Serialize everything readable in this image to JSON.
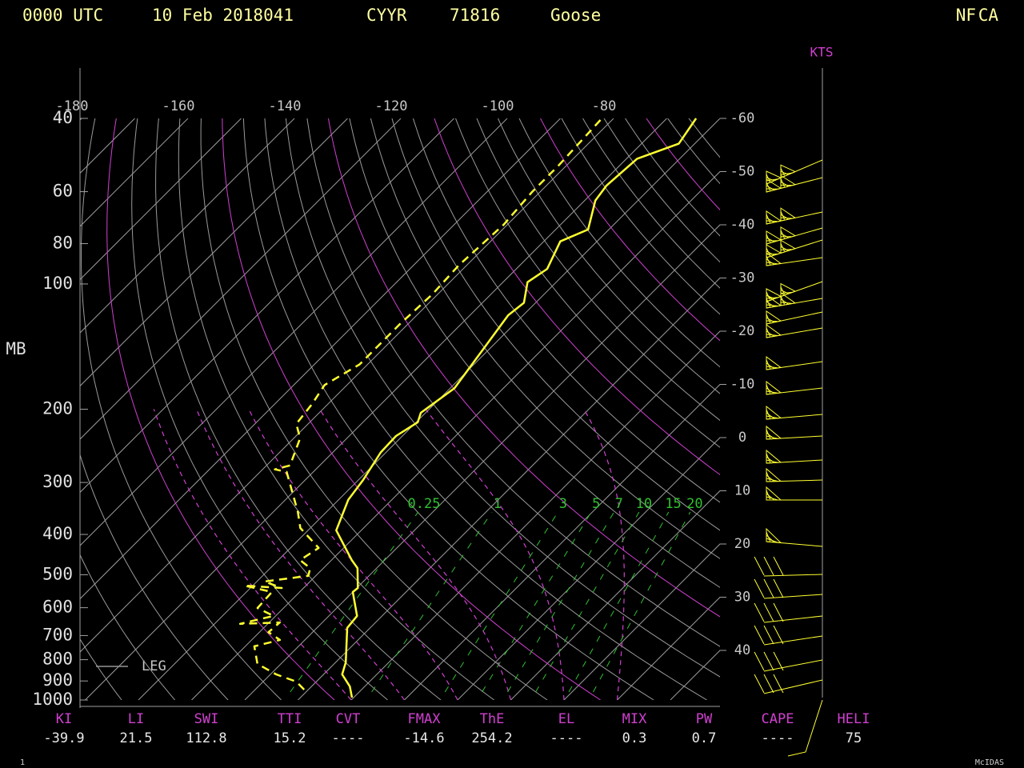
{
  "chart_data": {
    "type": "skewt",
    "header": [
      "0000 UTC",
      "10 Feb 2018041",
      "CYYR",
      "71816",
      "Goose"
    ],
    "header_right": [
      "NF",
      "CA"
    ],
    "ylabel": "MB",
    "log_scale": true,
    "ylim": [
      1000,
      40
    ],
    "yticks": [
      40,
      60,
      80,
      100,
      200,
      300,
      400,
      500,
      600,
      700,
      800,
      900,
      1000
    ],
    "xlim": [
      -180,
      -60
    ],
    "xticks": [
      -180,
      -160,
      -140,
      -120,
      -100,
      -80
    ],
    "x2ticks": [
      -60,
      -50,
      -40,
      -30,
      -20,
      -10,
      0,
      10,
      20,
      30,
      40
    ],
    "series": [
      {
        "color": "#ffff30",
        "style": "solid",
        "pressure": [
          987,
          928,
          868,
          812,
          671,
          628,
          550,
          538,
          482,
          461,
          391,
          330,
          296,
          254,
          232,
          215,
          204,
          178,
          119,
          111,
          99,
          92,
          79,
          74,
          63,
          58,
          50,
          46,
          40
        ],
        "values": [
          -20.3,
          -22.8,
          -26.5,
          -28.1,
          -34.3,
          -34.7,
          -40.0,
          -39.8,
          -43.6,
          -46.2,
          -54.7,
          -58.2,
          -59.1,
          -61.0,
          -61.2,
          -59.7,
          -60.9,
          -59.2,
          -62.8,
          -62.2,
          -65.4,
          -64.2,
          -66.9,
          -63.9,
          -68.0,
          -68.7,
          -68.0,
          -63.0,
          -64.5
        ]
      },
      {
        "color": "#ffff30",
        "style": "dashed",
        "pressure": [
          944,
          903,
          868,
          819,
          743,
          717,
          687,
          651,
          656,
          628,
          601,
          550,
          531,
          538,
          519,
          503,
          482,
          461,
          431,
          386,
          353,
          283,
          279,
          273,
          235,
          217,
          194,
          175,
          156,
          125,
          106,
          90,
          72,
          60,
          52,
          40
        ],
        "values": [
          -30.8,
          -33.8,
          -38.9,
          -44.4,
          -48.3,
          -44.7,
          -48.3,
          -48.0,
          -55.2,
          -50.4,
          -54.9,
          -55.2,
          -61.6,
          -54.1,
          -58.6,
          -51.4,
          -52.5,
          -55.9,
          -54.7,
          -61.9,
          -65.4,
          -75.0,
          -77.7,
          -75.6,
          -78.8,
          -82.2,
          -83.0,
          -84.2,
          -81.5,
          -81.5,
          -81.0,
          -81.5,
          -80.7,
          -81.5,
          -81.5,
          -82.2
        ]
      }
    ],
    "mixing_ratios": {
      "color": "#30c030",
      "values": [
        0.25,
        1,
        3,
        5,
        7,
        10,
        15,
        20
      ]
    },
    "legend_label": "LEG",
    "wind_unit": "KTS",
    "indices": [
      {
        "label": "KI",
        "value": -39.9
      },
      {
        "label": "LI",
        "value": 21.5
      },
      {
        "label": "SWI",
        "value": 112.8
      },
      {
        "label": "TTI",
        "value": 15.2
      },
      {
        "label": "CVT",
        "value": "----"
      },
      {
        "label": "FMAX",
        "value": -14.6
      },
      {
        "label": "ThE",
        "value": 254.2
      },
      {
        "label": "EL",
        "value": "----"
      },
      {
        "label": "MIX",
        "value": 0.3
      },
      {
        "label": "PW",
        "value": 0.7
      },
      {
        "label": "CAPE",
        "value": "----"
      },
      {
        "label": "HELI",
        "value": 75
      }
    ],
    "footer_left": "1",
    "footer_right": "McIDAS"
  }
}
